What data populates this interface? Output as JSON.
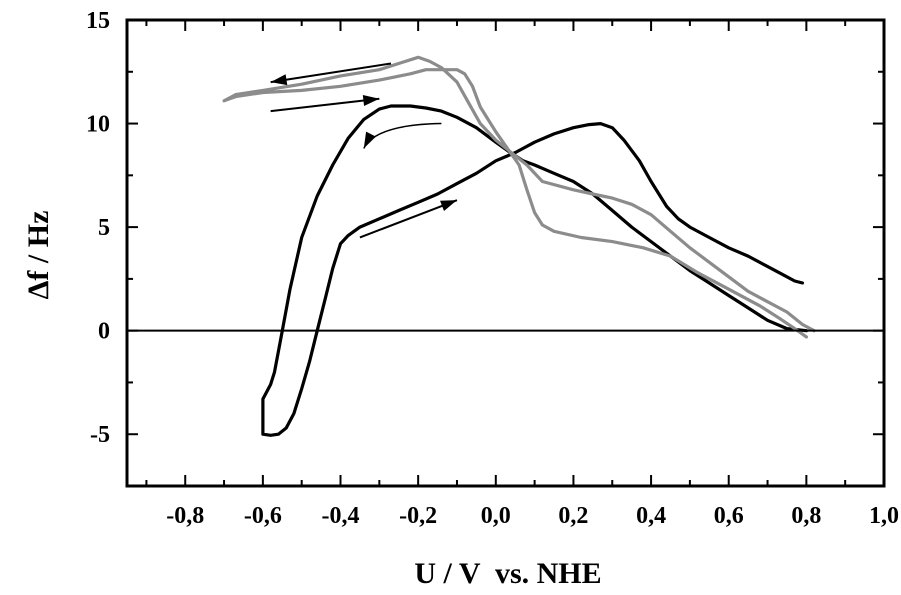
{
  "chart_data": {
    "type": "line",
    "title": "",
    "xlabel": "U / V  vs. NHE",
    "ylabel": "Δf / Hz",
    "xlim": [
      -0.95,
      1.0
    ],
    "ylim": [
      -7.5,
      15
    ],
    "x_ticks": [
      {
        "value": -0.8,
        "label": "-0,8"
      },
      {
        "value": -0.6,
        "label": "-0,6"
      },
      {
        "value": -0.4,
        "label": "-0,4"
      },
      {
        "value": -0.2,
        "label": "-0,2"
      },
      {
        "value": 0.0,
        "label": "0,0"
      },
      {
        "value": 0.2,
        "label": "0,2"
      },
      {
        "value": 0.4,
        "label": "0,4"
      },
      {
        "value": 0.6,
        "label": "0,6"
      },
      {
        "value": 0.8,
        "label": "0,8"
      },
      {
        "value": 1.0,
        "label": "1,0"
      }
    ],
    "y_ticks": [
      {
        "value": -5,
        "label": "-5"
      },
      {
        "value": 0,
        "label": "0"
      },
      {
        "value": 5,
        "label": "5"
      },
      {
        "value": 10,
        "label": "10"
      },
      {
        "value": 15,
        "label": "15"
      }
    ],
    "reference_line_y": 0,
    "grid": false,
    "legend": "none",
    "series": [
      {
        "color": "#000000",
        "points": [
          [
            0.79,
            2.3
          ],
          [
            0.77,
            2.4
          ],
          [
            0.73,
            2.8
          ],
          [
            0.65,
            3.6
          ],
          [
            0.6,
            4.0
          ],
          [
            0.55,
            4.5
          ],
          [
            0.5,
            5.0
          ],
          [
            0.47,
            5.4
          ],
          [
            0.44,
            6.0
          ],
          [
            0.4,
            7.2
          ],
          [
            0.37,
            8.2
          ],
          [
            0.33,
            9.2
          ],
          [
            0.3,
            9.8
          ],
          [
            0.27,
            10.0
          ],
          [
            0.24,
            9.95
          ],
          [
            0.2,
            9.8
          ],
          [
            0.15,
            9.5
          ],
          [
            0.1,
            9.1
          ],
          [
            0.05,
            8.6
          ],
          [
            0.0,
            8.2
          ],
          [
            -0.05,
            7.6
          ],
          [
            -0.1,
            7.1
          ],
          [
            -0.15,
            6.6
          ],
          [
            -0.2,
            6.2
          ],
          [
            -0.25,
            5.8
          ],
          [
            -0.3,
            5.4
          ],
          [
            -0.35,
            5.0
          ],
          [
            -0.38,
            4.6
          ],
          [
            -0.4,
            4.2
          ],
          [
            -0.42,
            3.0
          ],
          [
            -0.44,
            1.5
          ],
          [
            -0.46,
            0.0
          ],
          [
            -0.48,
            -1.5
          ],
          [
            -0.5,
            -2.8
          ],
          [
            -0.52,
            -4.0
          ],
          [
            -0.54,
            -4.7
          ],
          [
            -0.56,
            -5.0
          ],
          [
            -0.58,
            -5.05
          ],
          [
            -0.6,
            -5.0
          ],
          [
            -0.6,
            -3.3
          ],
          [
            -0.58,
            -2.6
          ],
          [
            -0.57,
            -2.0
          ],
          [
            -0.56,
            -1.0
          ],
          [
            -0.55,
            0.0
          ],
          [
            -0.53,
            2.0
          ],
          [
            -0.5,
            4.5
          ],
          [
            -0.46,
            6.5
          ],
          [
            -0.42,
            8.0
          ],
          [
            -0.38,
            9.3
          ],
          [
            -0.34,
            10.2
          ],
          [
            -0.3,
            10.7
          ],
          [
            -0.27,
            10.85
          ],
          [
            -0.22,
            10.85
          ],
          [
            -0.18,
            10.75
          ],
          [
            -0.14,
            10.6
          ],
          [
            -0.1,
            10.3
          ],
          [
            -0.05,
            9.8
          ],
          [
            0.0,
            9.1
          ],
          [
            0.03,
            8.7
          ],
          [
            0.07,
            8.2
          ],
          [
            0.1,
            8.0
          ],
          [
            0.15,
            7.6
          ],
          [
            0.2,
            7.2
          ],
          [
            0.25,
            6.6
          ],
          [
            0.3,
            5.8
          ],
          [
            0.35,
            5.0
          ],
          [
            0.4,
            4.3
          ],
          [
            0.45,
            3.6
          ],
          [
            0.5,
            2.9
          ],
          [
            0.55,
            2.3
          ],
          [
            0.6,
            1.7
          ],
          [
            0.65,
            1.1
          ],
          [
            0.7,
            0.5
          ],
          [
            0.75,
            0.1
          ],
          [
            0.8,
            0.0
          ]
        ]
      },
      {
        "color": "#8c8c8c",
        "points": [
          [
            0.8,
            -0.3
          ],
          [
            0.77,
            0.1
          ],
          [
            0.73,
            0.6
          ],
          [
            0.68,
            1.2
          ],
          [
            0.6,
            2.0
          ],
          [
            0.52,
            2.8
          ],
          [
            0.45,
            3.6
          ],
          [
            0.38,
            4.0
          ],
          [
            0.3,
            4.3
          ],
          [
            0.22,
            4.5
          ],
          [
            0.15,
            4.8
          ],
          [
            0.12,
            5.1
          ],
          [
            0.1,
            5.7
          ],
          [
            0.08,
            6.8
          ],
          [
            0.06,
            8.0
          ],
          [
            0.03,
            8.8
          ],
          [
            0.0,
            9.6
          ],
          [
            -0.04,
            10.8
          ],
          [
            -0.06,
            11.8
          ],
          [
            -0.08,
            12.4
          ],
          [
            -0.1,
            12.6
          ],
          [
            -0.13,
            12.6
          ],
          [
            -0.18,
            12.6
          ],
          [
            -0.22,
            12.4
          ],
          [
            -0.3,
            12.1
          ],
          [
            -0.4,
            11.8
          ],
          [
            -0.5,
            11.6
          ],
          [
            -0.6,
            11.5
          ],
          [
            -0.67,
            11.3
          ],
          [
            -0.7,
            11.1
          ],
          [
            -0.67,
            11.4
          ],
          [
            -0.6,
            11.6
          ],
          [
            -0.5,
            11.9
          ],
          [
            -0.4,
            12.3
          ],
          [
            -0.3,
            12.6
          ],
          [
            -0.25,
            12.9
          ],
          [
            -0.2,
            13.2
          ],
          [
            -0.17,
            13.0
          ],
          [
            -0.14,
            12.7
          ],
          [
            -0.1,
            12.0
          ],
          [
            -0.07,
            11.0
          ],
          [
            -0.04,
            10.0
          ],
          [
            0.0,
            9.2
          ],
          [
            0.04,
            8.6
          ],
          [
            0.08,
            8.0
          ],
          [
            0.12,
            7.2
          ],
          [
            0.2,
            6.8
          ],
          [
            0.25,
            6.6
          ],
          [
            0.3,
            6.4
          ],
          [
            0.35,
            6.1
          ],
          [
            0.4,
            5.6
          ],
          [
            0.45,
            4.8
          ],
          [
            0.5,
            4.0
          ],
          [
            0.55,
            3.3
          ],
          [
            0.6,
            2.6
          ],
          [
            0.65,
            1.9
          ],
          [
            0.7,
            1.4
          ],
          [
            0.75,
            0.9
          ],
          [
            0.79,
            0.3
          ],
          [
            0.82,
            0.0
          ]
        ]
      }
    ],
    "annotation_arrows": [
      {
        "from": [
          -0.14,
          10.0
        ],
        "to": [
          -0.34,
          8.8
        ],
        "curved": true,
        "thin": true
      },
      {
        "from": [
          -0.35,
          4.5
        ],
        "to": [
          -0.1,
          6.3
        ]
      },
      {
        "from": [
          -0.27,
          12.9
        ],
        "to": [
          -0.58,
          12.0
        ]
      },
      {
        "from": [
          -0.58,
          10.6
        ],
        "to": [
          -0.3,
          11.2
        ]
      }
    ]
  }
}
